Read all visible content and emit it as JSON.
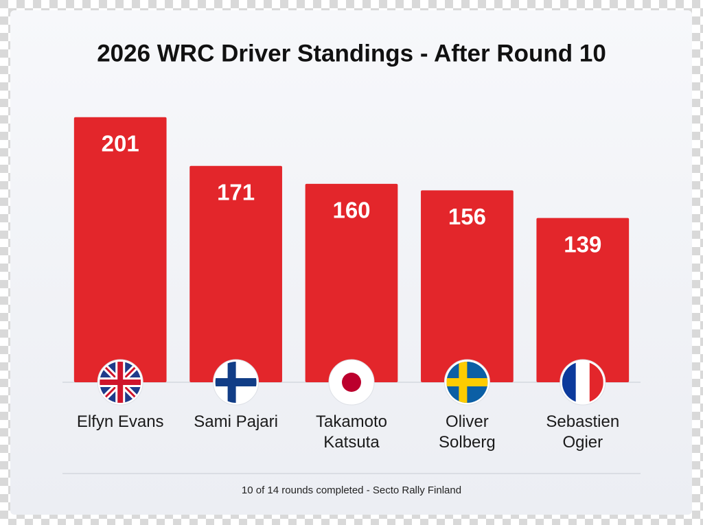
{
  "chart_data": {
    "type": "bar",
    "title": "2026 WRC Driver Standings - After Round 10",
    "categories": [
      "Elfyn Evans",
      "Sami Pajari",
      "Takamoto Katsuta",
      "Oliver Solberg",
      "Sebastien Ogier"
    ],
    "values": [
      201,
      171,
      160,
      156,
      139
    ],
    "color": "#e3262b",
    "ylim": [
      38,
      225
    ],
    "footnote": "10 of 14 rounds completed - Secto Rally Finland"
  }
}
